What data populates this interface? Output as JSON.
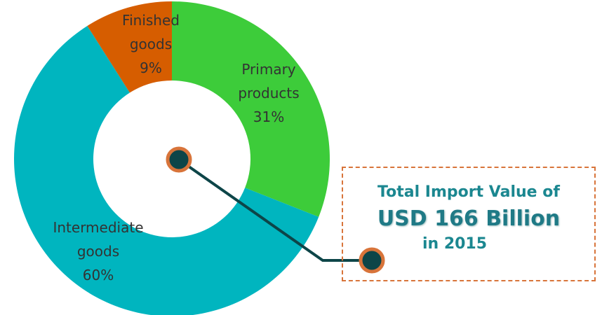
{
  "chart_data": {
    "type": "donut",
    "categories": [
      "Primary products",
      "Intermediate goods",
      "Finished goods"
    ],
    "values": [
      31,
      60,
      9
    ],
    "value_labels": [
      "31%",
      "60%",
      "9%"
    ],
    "colors": [
      "#3dcc3a",
      "#00b5bf",
      "#d65d00"
    ],
    "annotation": [
      "Total Import Value of",
      "USD 166 Billion",
      "in 2015"
    ]
  }
}
